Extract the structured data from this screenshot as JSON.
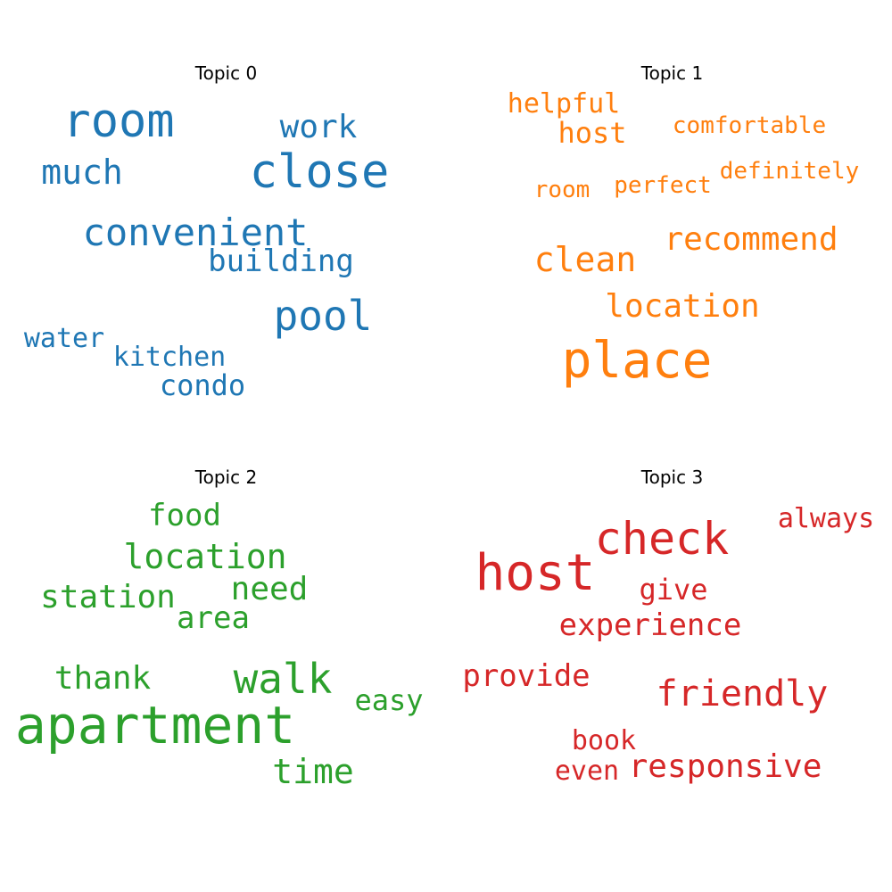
{
  "chart_data": {
    "type": "wordcloud",
    "panels": [
      {
        "title": "Topic 0",
        "color": "#1f77b4",
        "words": [
          "room",
          "close",
          "work",
          "much",
          "convenient",
          "building",
          "pool",
          "water",
          "kitchen",
          "condo"
        ]
      },
      {
        "title": "Topic 1",
        "color": "#ff7f0e",
        "words": [
          "helpful",
          "host",
          "comfortable",
          "definitely",
          "room",
          "perfect",
          "recommend",
          "clean",
          "location",
          "place"
        ]
      },
      {
        "title": "Topic 2",
        "color": "#2ca02c",
        "words": [
          "food",
          "location",
          "station",
          "need",
          "area",
          "walk",
          "thank",
          "easy",
          "apartment",
          "time"
        ]
      },
      {
        "title": "Topic 3",
        "color": "#d62728",
        "words": [
          "check",
          "always",
          "host",
          "give",
          "experience",
          "provide",
          "friendly",
          "book",
          "even",
          "responsive"
        ]
      }
    ]
  }
}
